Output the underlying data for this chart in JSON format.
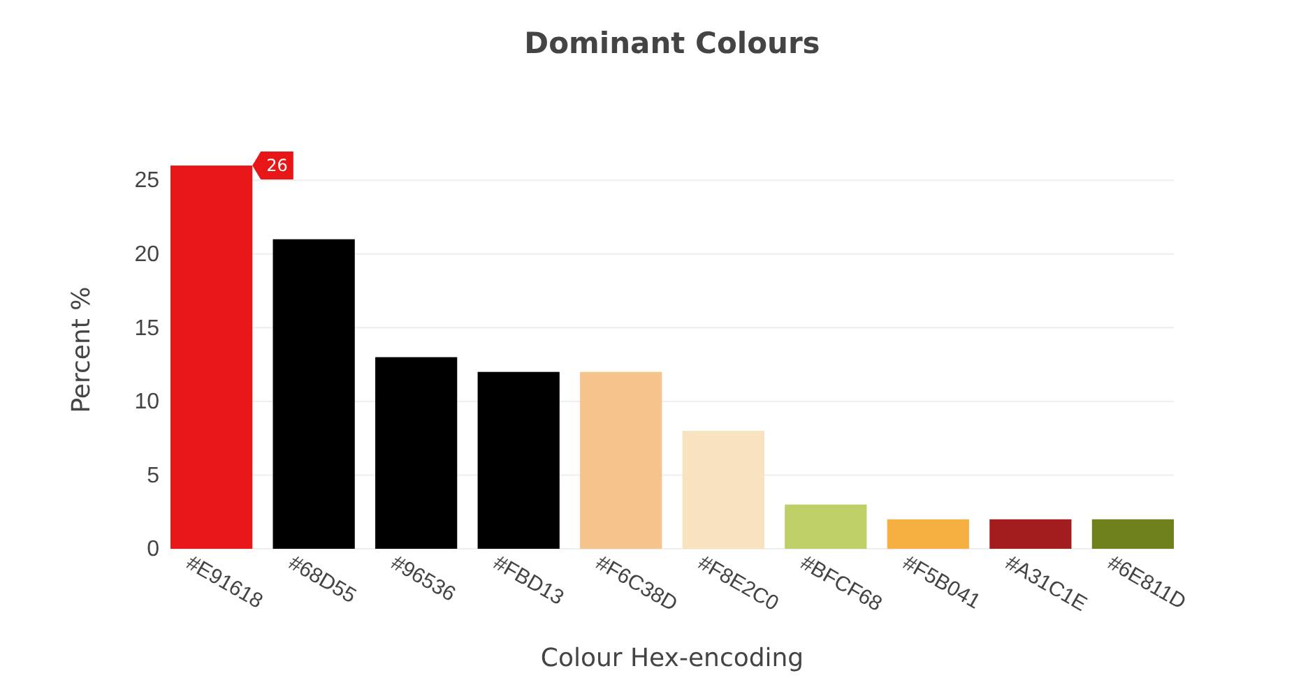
{
  "chart_data": {
    "type": "bar",
    "title": "Dominant Colours",
    "xlabel": "Colour Hex-encoding",
    "ylabel": "Percent %",
    "categories": [
      "#E91618",
      "#68D55",
      "#96536",
      "#FBD13",
      "#F6C38D",
      "#F8E2C0",
      "#BFCF68",
      "#F5B041",
      "#A31C1E",
      "#6E811D"
    ],
    "values": [
      26,
      21,
      13,
      12,
      12,
      8,
      3,
      2,
      2,
      2
    ],
    "colors": [
      "#e91618",
      "#000000",
      "#000000",
      "#000000",
      "#f6c38d",
      "#f8e2c0",
      "#bfcf68",
      "#f5b041",
      "#a31c1e",
      "#6e811d"
    ],
    "ylim": [
      0,
      27
    ],
    "yticks": [
      0,
      5,
      10,
      15,
      20,
      25
    ],
    "grid": "y",
    "annotations": [
      {
        "text": "26",
        "x": "#E91618",
        "y": 26
      }
    ]
  }
}
